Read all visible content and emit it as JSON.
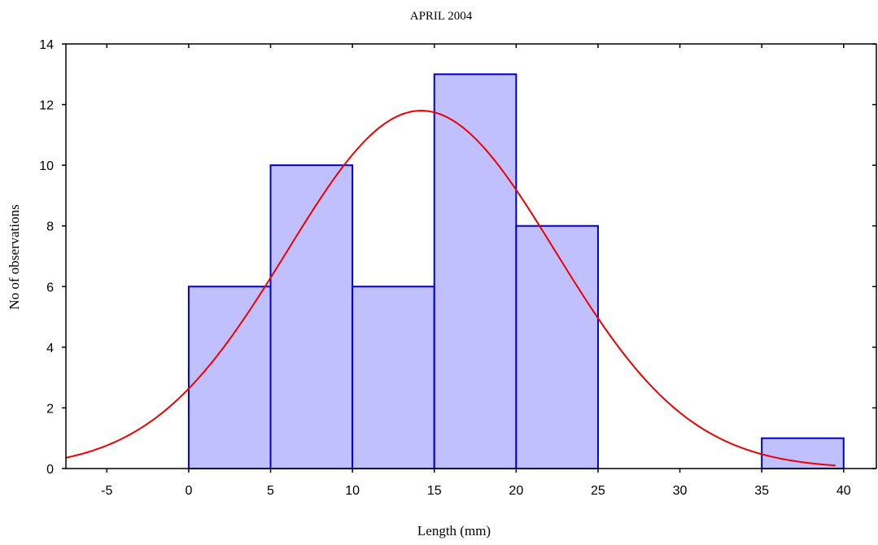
{
  "chart_data": {
    "type": "bar",
    "title": "APRIL 2004",
    "xlabel": "Length (mm)",
    "ylabel": "No of observations",
    "xlim": [
      -7.5,
      42
    ],
    "ylim": [
      0,
      14
    ],
    "x_ticks": [
      -5,
      0,
      5,
      10,
      15,
      20,
      25,
      30,
      35,
      40
    ],
    "y_ticks": [
      0,
      2,
      4,
      6,
      8,
      10,
      12,
      14
    ],
    "bins": [
      {
        "start": -5,
        "end": 0,
        "count": 0
      },
      {
        "start": 0,
        "end": 5,
        "count": 6
      },
      {
        "start": 5,
        "end": 10,
        "count": 10
      },
      {
        "start": 10,
        "end": 15,
        "count": 6
      },
      {
        "start": 15,
        "end": 20,
        "count": 13
      },
      {
        "start": 20,
        "end": 25,
        "count": 8
      },
      {
        "start": 25,
        "end": 30,
        "count": 0
      },
      {
        "start": 30,
        "end": 35,
        "count": 0
      },
      {
        "start": 35,
        "end": 40,
        "count": 1
      }
    ],
    "fit_curve": {
      "type": "normal",
      "mean": 14.2,
      "sd": 8.2,
      "peak": 11.8,
      "x_range": [
        -7.5,
        39.5
      ]
    },
    "colors": {
      "bar_fill": "#c0c0ff",
      "bar_stroke": "#0000cc",
      "curve": "#ee0000",
      "axis": "#000000"
    },
    "grid": false,
    "legend": "none"
  }
}
